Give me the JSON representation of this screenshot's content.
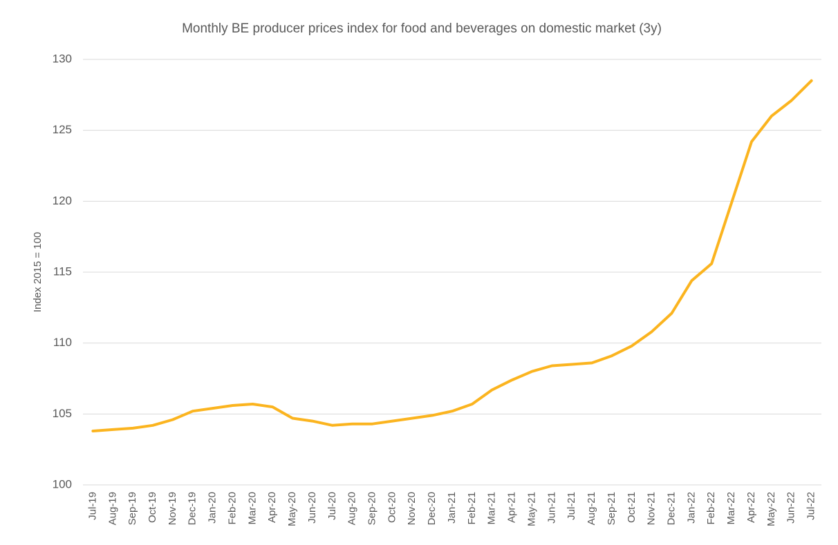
{
  "chart_data": {
    "type": "line",
    "title": "Monthly BE producer prices index for food and beverages on domestic market (3y)",
    "y_label": "Index 2015 = 100",
    "categories": [
      "Jul-19",
      "Aug-19",
      "Sep-19",
      "Oct-19",
      "Nov-19",
      "Dec-19",
      "Jan-20",
      "Feb-20",
      "Mar-20",
      "Apr-20",
      "May-20",
      "Jun-20",
      "Jul-20",
      "Aug-20",
      "Sep-20",
      "Oct-20",
      "Nov-20",
      "Dec-20",
      "Jan-21",
      "Feb-21",
      "Mar-21",
      "Apr-21",
      "May-21",
      "Jun-21",
      "Jul-21",
      "Aug-21",
      "Sep-21",
      "Oct-21",
      "Nov-21",
      "Dec-21",
      "Jan-22",
      "Feb-22",
      "Mar-22",
      "Apr-22",
      "May-22",
      "Jun-22",
      "Jul-22"
    ],
    "values": [
      103.8,
      103.9,
      104.0,
      104.2,
      104.6,
      105.2,
      105.4,
      105.6,
      105.7,
      105.5,
      104.7,
      104.5,
      104.2,
      104.3,
      104.3,
      104.5,
      104.7,
      104.9,
      105.2,
      105.7,
      106.7,
      107.4,
      108.0,
      108.4,
      108.5,
      108.6,
      109.1,
      109.8,
      110.8,
      112.1,
      114.4,
      115.6,
      119.9,
      124.2,
      126.0,
      127.1,
      128.5
    ],
    "color": "#fbb41f",
    "ylim": [
      100,
      130
    ],
    "yticks": [
      100,
      105,
      110,
      115,
      120,
      125,
      130
    ],
    "grid": true
  }
}
